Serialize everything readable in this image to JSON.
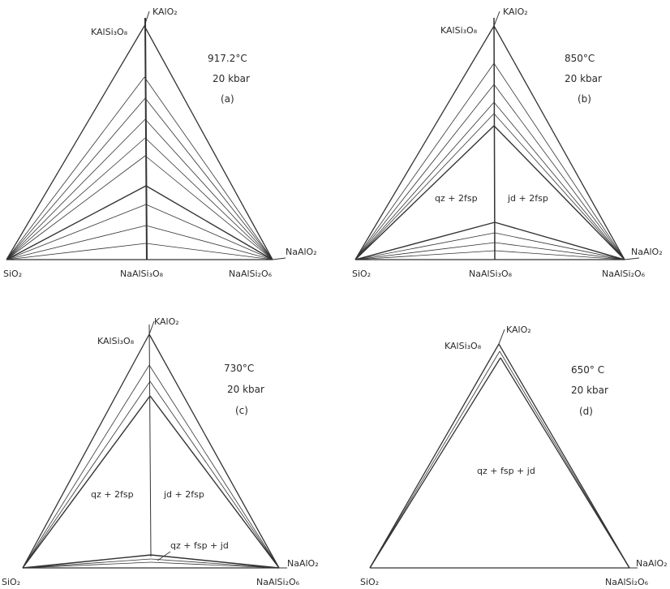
{
  "panels": [
    {
      "id": "a",
      "temperature": "917.2°C",
      "pressure": "20 kbar",
      "label": "(a)",
      "vertices": {
        "top": "KAlO₂",
        "top_feldspar": "KAlSi₃O₈",
        "left": "SiO₂",
        "bottom_mid": "NaAlSi₃O₈",
        "bottom_right": "NaAlSi₂O₆",
        "right": "NaAlO₂"
      },
      "fields": []
    },
    {
      "id": "b",
      "temperature": "850°C",
      "pressure": "20 kbar",
      "label": "(b)",
      "vertices": {
        "top": "KAlO₂",
        "top_feldspar": "KAlSi₃O₈",
        "left": "SiO₂",
        "bottom_mid": "NaAlSi₃O₈",
        "bottom_right": "NaAlSi₂O₆",
        "right": "NaAlO₂"
      },
      "fields": [
        "qz + 2fsp",
        "jd + 2fsp"
      ]
    },
    {
      "id": "c",
      "temperature": "730°C",
      "pressure": "20 kbar",
      "label": "(c)",
      "vertices": {
        "top": "KAlO₂",
        "top_feldspar": "KAlSi₃O₈",
        "left": "SiO₂",
        "bottom_right": "NaAlSi₂O₆",
        "right": "NaAlO₂"
      },
      "fields": [
        "qz + 2fsp",
        "jd + 2fsp",
        "qz + fsp + jd"
      ]
    },
    {
      "id": "d",
      "temperature": "650° C",
      "pressure": "20 kbar",
      "label": "(d)",
      "vertices": {
        "top": "KAlO₂",
        "top_feldspar": "KAlSi₃O₈",
        "left": "SiO₂",
        "bottom_right": "NaAlSi₂O₆",
        "right": "NaAlO₂"
      },
      "fields": [
        "qz + fsp + jd"
      ]
    }
  ]
}
